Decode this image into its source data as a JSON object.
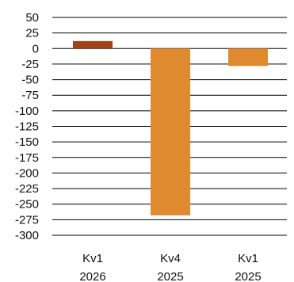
{
  "chart_data": {
    "type": "bar",
    "categories": [
      {
        "line1": "Kv1",
        "line2": "2026"
      },
      {
        "line1": "Kv4",
        "line2": "2025"
      },
      {
        "line1": "Kv1",
        "line2": "2025"
      }
    ],
    "values": [
      12,
      -268,
      -28
    ],
    "bar_colors": [
      "#A0431A",
      "#E08A30",
      "#E08A30"
    ],
    "ylim": [
      -300,
      50
    ],
    "yticks": [
      50,
      25,
      0,
      -25,
      -50,
      -75,
      -100,
      -125,
      -150,
      -175,
      -200,
      -225,
      -250,
      -275,
      -300
    ],
    "grid": true,
    "title": "",
    "xlabel": "",
    "ylabel": ""
  }
}
